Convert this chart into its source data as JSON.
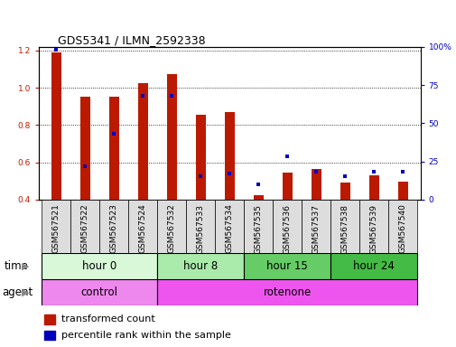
{
  "title": "GDS5341 / ILMN_2592338",
  "samples": [
    "GSM567521",
    "GSM567522",
    "GSM567523",
    "GSM567524",
    "GSM567532",
    "GSM567533",
    "GSM567534",
    "GSM567535",
    "GSM567536",
    "GSM567537",
    "GSM567538",
    "GSM567539",
    "GSM567540"
  ],
  "transformed_count": [
    1.19,
    0.95,
    0.95,
    1.025,
    1.075,
    0.855,
    0.87,
    0.425,
    0.545,
    0.565,
    0.49,
    0.53,
    0.495
  ],
  "percentile_rank": [
    98,
    22,
    43,
    68,
    68,
    15,
    17,
    10,
    28,
    18,
    15,
    18,
    18
  ],
  "bar_bottom": 0.4,
  "ylim_left": [
    0.4,
    1.22
  ],
  "ylim_right": [
    0,
    100
  ],
  "yticks_left": [
    0.4,
    0.6,
    0.8,
    1.0,
    1.2
  ],
  "yticks_right": [
    0,
    25,
    50,
    75,
    100
  ],
  "ytick_labels_right": [
    "0",
    "25",
    "50",
    "75",
    "100%"
  ],
  "red_color": "#bb1a00",
  "blue_color": "#0000bb",
  "grid_color": "#000000",
  "time_groups": [
    {
      "label": "hour 0",
      "start": 0,
      "end": 4,
      "color": "#d8f8d8"
    },
    {
      "label": "hour 8",
      "start": 4,
      "end": 7,
      "color": "#aaeaaa"
    },
    {
      "label": "hour 15",
      "start": 7,
      "end": 10,
      "color": "#66cc66"
    },
    {
      "label": "hour 24",
      "start": 10,
      "end": 13,
      "color": "#44bb44"
    }
  ],
  "agent_groups": [
    {
      "label": "control",
      "start": 0,
      "end": 4,
      "color": "#ee88ee"
    },
    {
      "label": "rotenone",
      "start": 4,
      "end": 13,
      "color": "#ee55ee"
    }
  ],
  "time_label": "time",
  "agent_label": "agent",
  "legend_red": "transformed count",
  "legend_blue": "percentile rank within the sample",
  "bar_width": 0.35,
  "tick_label_fontsize": 6.5,
  "row_fontsize": 8.5,
  "title_fontsize": 9,
  "legend_fontsize": 8
}
